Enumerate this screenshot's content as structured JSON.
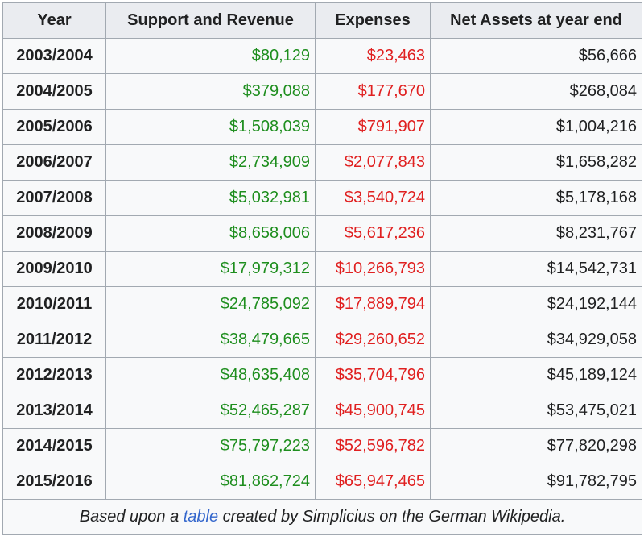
{
  "table": {
    "headers": [
      "Year",
      "Support and Revenue",
      "Expenses",
      "Net Assets at year end"
    ],
    "rows": [
      {
        "year": "2003/2004",
        "revenue": "$80,129",
        "expenses": "$23,463",
        "assets": "$56,666"
      },
      {
        "year": "2004/2005",
        "revenue": "$379,088",
        "expenses": "$177,670",
        "assets": "$268,084"
      },
      {
        "year": "2005/2006",
        "revenue": "$1,508,039",
        "expenses": "$791,907",
        "assets": "$1,004,216"
      },
      {
        "year": "2006/2007",
        "revenue": "$2,734,909",
        "expenses": "$2,077,843",
        "assets": "$1,658,282"
      },
      {
        "year": "2007/2008",
        "revenue": "$5,032,981",
        "expenses": "$3,540,724",
        "assets": "$5,178,168"
      },
      {
        "year": "2008/2009",
        "revenue": "$8,658,006",
        "expenses": "$5,617,236",
        "assets": "$8,231,767"
      },
      {
        "year": "2009/2010",
        "revenue": "$17,979,312",
        "expenses": "$10,266,793",
        "assets": "$14,542,731"
      },
      {
        "year": "2010/2011",
        "revenue": "$24,785,092",
        "expenses": "$17,889,794",
        "assets": "$24,192,144"
      },
      {
        "year": "2011/2012",
        "revenue": "$38,479,665",
        "expenses": "$29,260,652",
        "assets": "$34,929,058"
      },
      {
        "year": "2012/2013",
        "revenue": "$48,635,408",
        "expenses": "$35,704,796",
        "assets": "$45,189,124"
      },
      {
        "year": "2013/2014",
        "revenue": "$52,465,287",
        "expenses": "$45,900,745",
        "assets": "$53,475,021"
      },
      {
        "year": "2014/2015",
        "revenue": "$75,797,223",
        "expenses": "$52,596,782",
        "assets": "$77,820,298"
      },
      {
        "year": "2015/2016",
        "revenue": "$81,862,724",
        "expenses": "$65,947,465",
        "assets": "$91,782,795"
      }
    ]
  },
  "caption": {
    "before": "Based upon a ",
    "link": "table",
    "after": " created by Simplicius on the German Wikipedia."
  },
  "colors": {
    "revenue": "#1e8e1e",
    "expenses": "#e02020",
    "link": "#3366cc",
    "border": "#a2a9b1",
    "header_bg": "#eaecf0"
  }
}
